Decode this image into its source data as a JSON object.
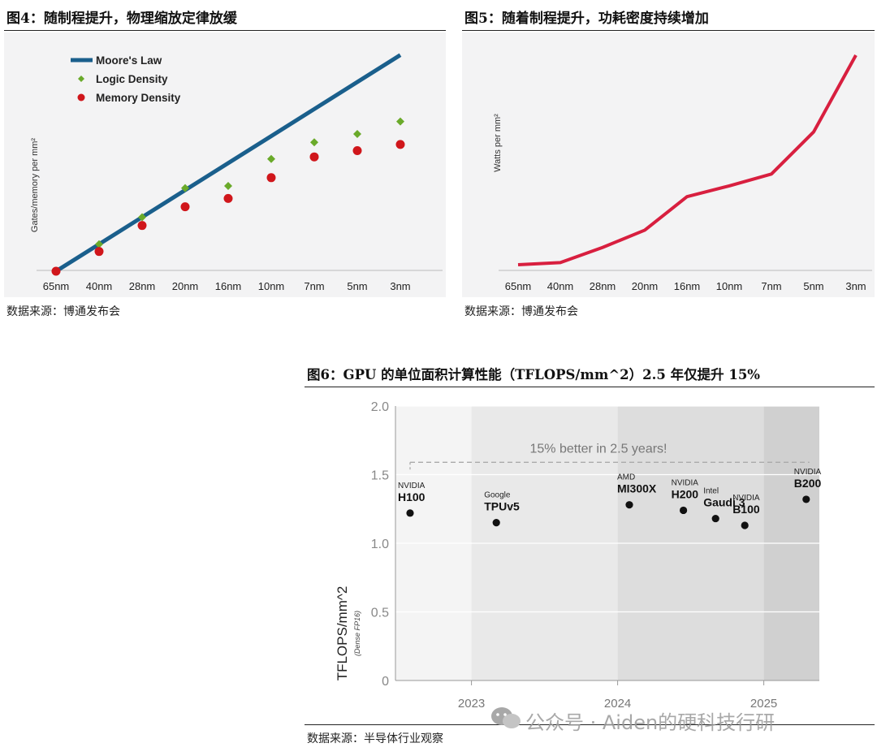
{
  "figures": {
    "fig4": {
      "title": "图4：随制程提升，物理缩放定律放缓",
      "source": "数据来源：博通发布会"
    },
    "fig5": {
      "title": "图5：随着制程提升，功耗密度持续增加",
      "source": "数据来源：博通发布会"
    },
    "fig6": {
      "title": "图6：GPU 的单位面积计算性能（TFLOPS/mm^2）2.5 年仅提升 15%",
      "source": "数据来源：半导体行业观察"
    }
  },
  "watermark": "公众号 · Aiden的硬科技行研",
  "chart_data": [
    {
      "type": "line",
      "id": "fig4",
      "ylabel": "Gates/memory per mm²",
      "categories": [
        "65nm",
        "40nm",
        "28nm",
        "20nm",
        "16nm",
        "10nm",
        "7nm",
        "5nm",
        "3nm"
      ],
      "y_units": "relative (no printed scale)",
      "series": [
        {
          "name": "Moore's Law",
          "kind": "line",
          "color": "#1a5f8c",
          "values": [
            0,
            1.3,
            2.6,
            3.9,
            5.2,
            6.5,
            7.8,
            9.1,
            10.4
          ]
        },
        {
          "name": "Logic Density",
          "kind": "diamond",
          "color": "#6aaa2a",
          "values": [
            0,
            1.3,
            2.6,
            4.0,
            4.1,
            5.4,
            6.2,
            6.6,
            7.2
          ]
        },
        {
          "name": "Memory Density",
          "kind": "dot",
          "color": "#d0161b",
          "values": [
            0,
            0.95,
            2.2,
            3.1,
            3.5,
            4.5,
            5.5,
            5.8,
            6.1
          ]
        }
      ],
      "legend": "top-left"
    },
    {
      "type": "line",
      "id": "fig5",
      "ylabel": "Watts per mm²",
      "categories": [
        "65nm",
        "40nm",
        "28nm",
        "20nm",
        "16nm",
        "10nm",
        "7nm",
        "5nm",
        "3nm"
      ],
      "y_units": "relative (no printed scale)",
      "series": [
        {
          "name": "",
          "color": "#d81f3f",
          "values": [
            0.3,
            0.4,
            1.1,
            1.9,
            3.45,
            3.95,
            4.5,
            6.45,
            10.0
          ]
        }
      ]
    },
    {
      "type": "scatter",
      "id": "fig6",
      "ylabel": "TFLOPS/mm^2",
      "ylabel_sub": "(Dense FP16)",
      "xlim": [
        2022.48,
        2025.38
      ],
      "ylim": [
        0,
        2.0
      ],
      "yticks": [
        "0",
        "0.5",
        "1.0",
        "1.5",
        "2.0"
      ],
      "xticks": [
        {
          "label": "2023",
          "x": 2023.0
        },
        {
          "label": "2024",
          "x": 2024.0
        },
        {
          "label": "2025",
          "x": 2025.0
        }
      ],
      "annotation": "15% better in 2.5 years!",
      "reference_line_y": 1.59,
      "points": [
        {
          "vendor": "NVIDIA",
          "name": "H100",
          "x": 2022.58,
          "y": 1.22
        },
        {
          "vendor": "Google",
          "name": "TPUv5",
          "x": 2023.17,
          "y": 1.15
        },
        {
          "vendor": "AMD",
          "name": "MI300X",
          "x": 2024.08,
          "y": 1.28
        },
        {
          "vendor": "NVIDIA",
          "name": "H200",
          "x": 2024.45,
          "y": 1.24
        },
        {
          "vendor": "Intel",
          "name": "Gaudi 3",
          "x": 2024.67,
          "y": 1.18
        },
        {
          "vendor": "NVIDIA",
          "name": "B100",
          "x": 2024.87,
          "y": 1.13
        },
        {
          "vendor": "NVIDIA",
          "name": "B200",
          "x": 2025.29,
          "y": 1.32
        }
      ]
    }
  ]
}
